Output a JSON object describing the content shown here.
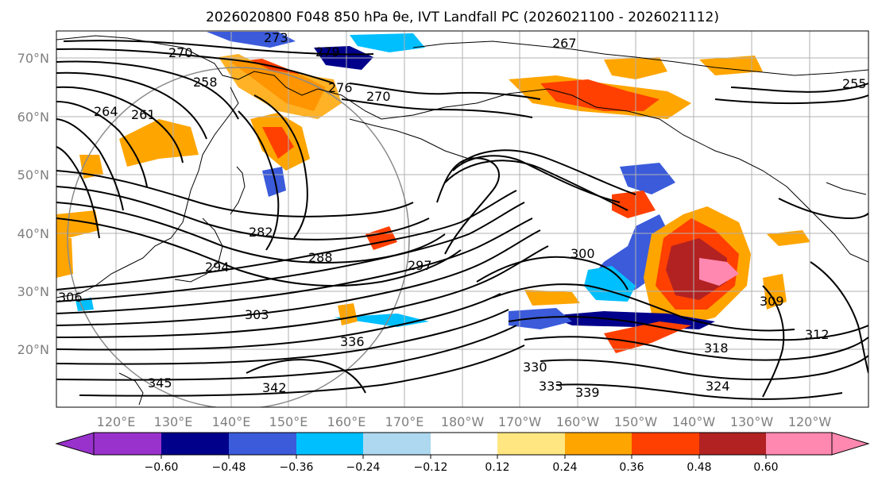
{
  "figure": {
    "title": "2026020800 F048 850 hPa θe, IVT Landfall PC (2026021100 - 2026021112)"
  },
  "map": {
    "lat_labels": [
      "70°N",
      "60°N",
      "50°N",
      "40°N",
      "30°N",
      "20°N"
    ],
    "lon_labels": [
      "120°E",
      "130°E",
      "140°E",
      "150°E",
      "160°E",
      "170°E",
      "180°W",
      "170°W",
      "160°W",
      "150°W",
      "140°W",
      "130°W",
      "120°W"
    ],
    "contour_labels": [
      "273",
      "270",
      "279",
      "267",
      "276",
      "261",
      "255",
      "264",
      "258",
      "270",
      "282",
      "288",
      "297",
      "294",
      "300",
      "303",
      "306",
      "330",
      "336",
      "345",
      "339",
      "318",
      "324",
      "309",
      "312",
      "333",
      "342"
    ]
  },
  "colorbar": {
    "ticks": [
      "−0.60",
      "−0.48",
      "−0.36",
      "−0.24",
      "−0.12",
      "0.12",
      "0.24",
      "0.36",
      "0.48",
      "0.60"
    ],
    "colors": [
      "#9932cc",
      "#00008b",
      "#3b5bdb",
      "#00bfff",
      "#add8f0",
      "#ffffff",
      "#ffe680",
      "#ffa500",
      "#ff4000",
      "#b22222",
      "#ff88b0"
    ]
  }
}
